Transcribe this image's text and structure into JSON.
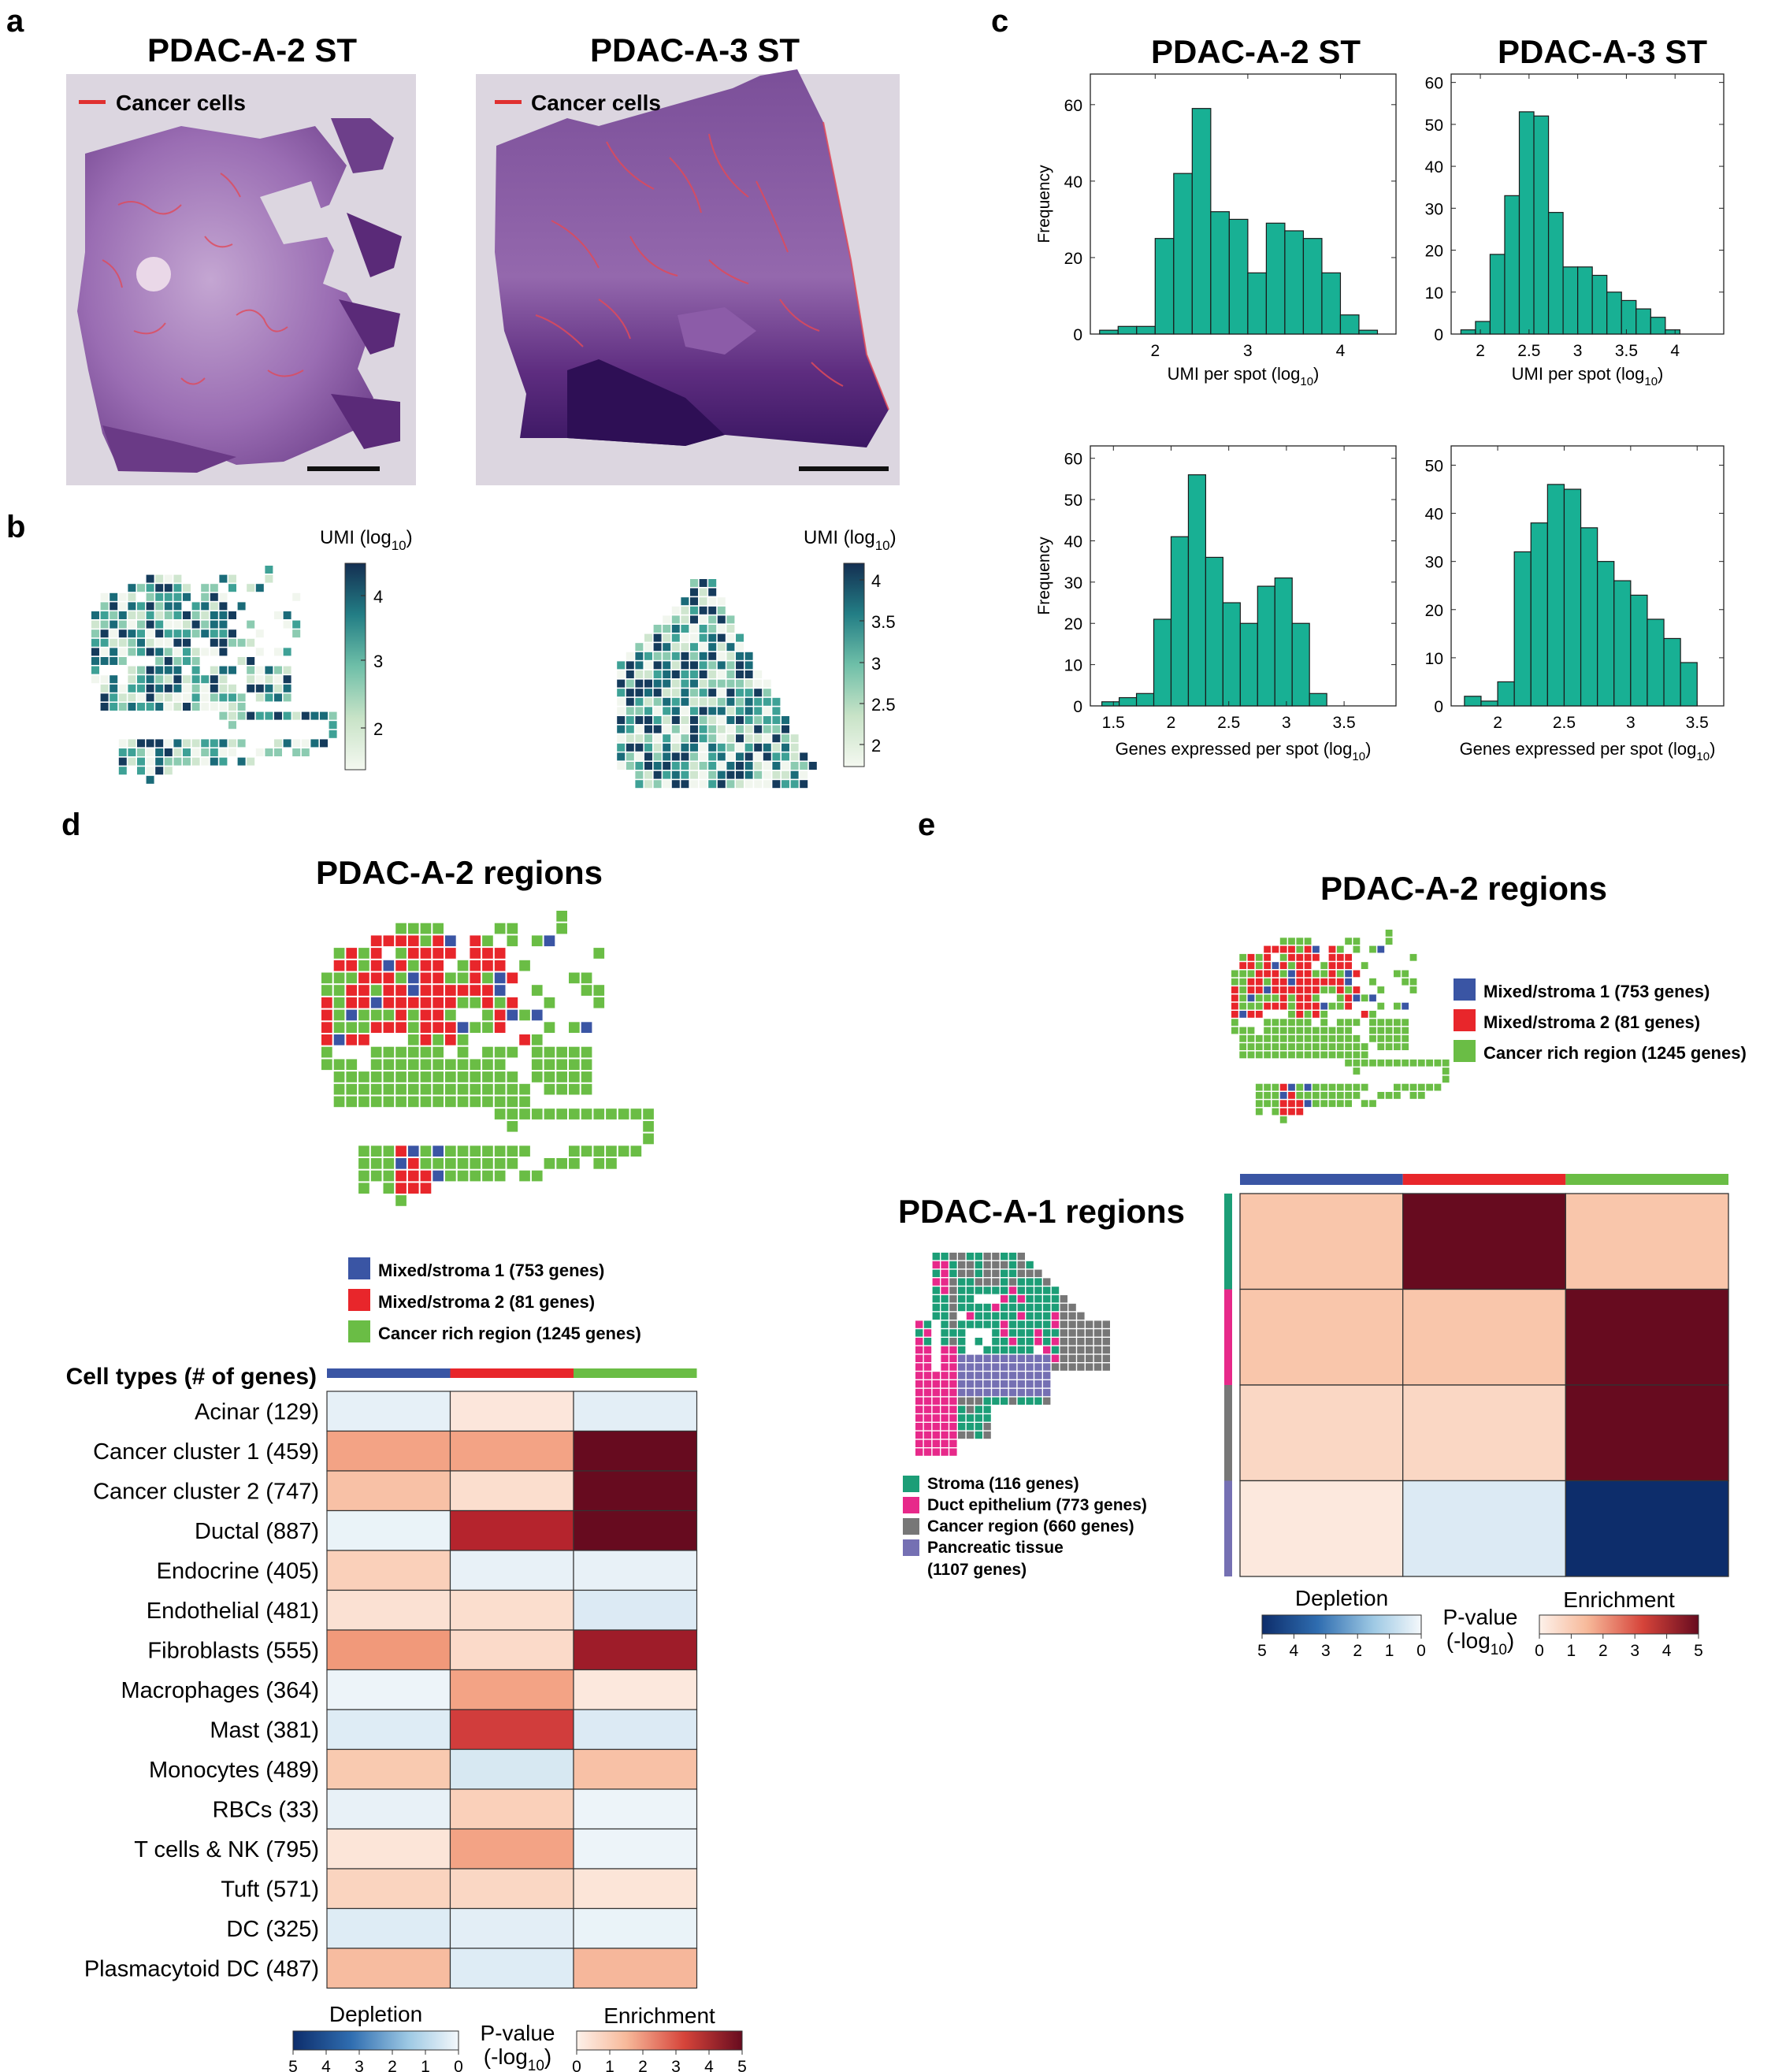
{
  "panel_letters": {
    "a": "a",
    "b": "b",
    "c": "c",
    "d": "d",
    "e": "e"
  },
  "panel_a": {
    "titles": [
      "PDAC-A-2 ST",
      "PDAC-A-3 ST"
    ],
    "legend_label": "Cancer cells",
    "legend_color": "#e03030",
    "tissue_colors": {
      "light": "#b58fc4",
      "dark": "#5a2a78",
      "bg": "#dcd6e0"
    }
  },
  "panel_b": {
    "colorbar_title": "UMI (log",
    "colorbar_sub": "10",
    "colorbar_close": ")",
    "left_ticks": [
      "4",
      "3",
      "2"
    ],
    "right_ticks": [
      "4",
      "3.5",
      "3",
      "2.5",
      "2"
    ],
    "colors": [
      "#f1f6ee",
      "#cfe6cf",
      "#8ccbb1",
      "#3ea196",
      "#1a6b79",
      "#153b5c"
    ]
  },
  "chart_data": [
    {
      "type": "bar",
      "title": "PDAC-A-2 ST",
      "xlabel": "UMI per spot (log10)",
      "ylabel": "Frequency",
      "x_ticks": [
        "2",
        "3",
        "4"
      ],
      "y_ticks": [
        "0",
        "20",
        "40",
        "60"
      ],
      "xlim": [
        1.3,
        4.6
      ],
      "ylim": [
        0,
        68
      ],
      "bin_edges": [
        1.4,
        1.6,
        1.8,
        2.0,
        2.2,
        2.4,
        2.6,
        2.8,
        3.0,
        3.2,
        3.4,
        3.6,
        3.8,
        4.0,
        4.2,
        4.4
      ],
      "values": [
        1,
        2,
        2,
        25,
        42,
        59,
        32,
        30,
        16,
        29,
        27,
        25,
        16,
        5,
        1
      ],
      "color": "#18b094"
    },
    {
      "type": "bar",
      "title": "PDAC-A-3 ST",
      "xlabel": "UMI per spot (log10)",
      "ylabel": "",
      "x_ticks": [
        "2",
        "2.5",
        "3",
        "3.5",
        "4"
      ],
      "y_ticks": [
        "0",
        "10",
        "20",
        "30",
        "40",
        "50",
        "60"
      ],
      "xlim": [
        1.7,
        4.5
      ],
      "ylim": [
        0,
        62
      ],
      "bin_edges": [
        1.8,
        1.95,
        2.1,
        2.25,
        2.4,
        2.55,
        2.7,
        2.85,
        3.0,
        3.15,
        3.3,
        3.45,
        3.6,
        3.75,
        3.9,
        4.05,
        4.2
      ],
      "values": [
        1,
        3,
        19,
        33,
        53,
        52,
        29,
        16,
        16,
        14,
        10,
        8,
        6,
        4,
        1,
        0
      ],
      "color": "#18b094"
    },
    {
      "type": "bar",
      "title": "",
      "xlabel": "Genes expressed per spot (log10)",
      "ylabel": "Frequency",
      "x_ticks": [
        "1.5",
        "2",
        "2.5",
        "3",
        "3.5"
      ],
      "y_ticks": [
        "0",
        "10",
        "20",
        "30",
        "40",
        "50",
        "60"
      ],
      "xlim": [
        1.3,
        3.95
      ],
      "ylim": [
        0,
        63
      ],
      "bin_edges": [
        1.4,
        1.55,
        1.7,
        1.85,
        2.0,
        2.15,
        2.3,
        2.45,
        2.6,
        2.75,
        2.9,
        3.05,
        3.2,
        3.35,
        3.5,
        3.65,
        3.8
      ],
      "values": [
        1,
        2,
        3,
        21,
        41,
        56,
        36,
        25,
        20,
        29,
        31,
        20,
        3,
        0,
        0,
        0
      ],
      "color": "#18b094"
    },
    {
      "type": "bar",
      "title": "",
      "xlabel": "Genes expressed per spot (log10)",
      "ylabel": "",
      "x_ticks": [
        "2",
        "2.5",
        "3",
        "3.5"
      ],
      "y_ticks": [
        "0",
        "10",
        "20",
        "30",
        "40",
        "50"
      ],
      "xlim": [
        1.65,
        3.7
      ],
      "ylim": [
        0,
        54
      ],
      "bin_edges": [
        1.75,
        1.875,
        2.0,
        2.125,
        2.25,
        2.375,
        2.5,
        2.625,
        2.75,
        2.875,
        3.0,
        3.125,
        3.25,
        3.375,
        3.5
      ],
      "values": [
        2,
        1,
        5,
        32,
        38,
        46,
        45,
        37,
        30,
        26,
        23,
        18,
        14,
        9,
        6
      ],
      "color": "#18b094"
    },
    {
      "type": "heatmap",
      "title": "",
      "ylabel": "Cell types (# of genes)",
      "rows": [
        "Acinar (129)",
        "Cancer cluster 1 (459)",
        "Cancer cluster 2 (747)",
        "Ductal (887)",
        "Endocrine (405)",
        "Endothelial (481)",
        "Fibroblasts (555)",
        "Macrophages (364)",
        "Mast (381)",
        "Monocytes (489)",
        "RBCs (33)",
        "T cells & NK (795)",
        "Tuft (571)",
        "DC (325)",
        "Plasmacytoid DC (487)"
      ],
      "columns": [
        "Mixed/stroma 1 (753 genes)",
        "Mixed/stroma 2 (81 genes)",
        "Cancer rich region (1245 genes)"
      ],
      "column_colors": [
        "#3a55a4",
        "#e8262b",
        "#6abd45"
      ],
      "values": [
        [
          -0.6,
          0.35,
          -0.7
        ],
        [
          2.0,
          2.0,
          5.0
        ],
        [
          1.4,
          0.6,
          5.0
        ],
        [
          -0.4,
          4.0,
          5.0
        ],
        [
          1.0,
          -0.5,
          -0.5
        ],
        [
          0.5,
          0.6,
          -1.0
        ],
        [
          2.2,
          0.7,
          4.3
        ],
        [
          -0.3,
          2.0,
          0.3
        ],
        [
          -0.9,
          3.5,
          -1.0
        ],
        [
          1.2,
          -1.2,
          1.4
        ],
        [
          -0.5,
          1.0,
          -0.3
        ],
        [
          0.4,
          2.0,
          -0.3
        ],
        [
          0.9,
          0.8,
          0.4
        ],
        [
          -0.9,
          -0.7,
          -0.4
        ],
        [
          1.5,
          -0.9,
          1.6
        ]
      ],
      "scale": {
        "depletion_label": "Depletion",
        "enrichment_label": "Enrichment",
        "pvalue_label": "P-value",
        "pvalue_sub": "(-log",
        "pvalue_sub2": "10",
        "pvalue_close": ")",
        "dep_ticks": [
          "5",
          "4",
          "3",
          "2",
          "1",
          "0"
        ],
        "enr_ticks": [
          "0",
          "1",
          "2",
          "3",
          "4",
          "5"
        ]
      }
    },
    {
      "type": "heatmap",
      "title": "",
      "rows": [
        "Stroma (116 genes)",
        "Duct epithelium (773 genes)",
        "Cancer region (660 genes)",
        "Pancreatic tissue (1107 genes)"
      ],
      "row_colors": [
        "#1c9e77",
        "#e7298a",
        "#777777",
        "#7570b3"
      ],
      "columns": [
        "Mixed/stroma 1 (753 genes)",
        "Mixed/stroma 2 (81 genes)",
        "Cancer rich region (1245 genes)"
      ],
      "column_colors": [
        "#3a55a4",
        "#e8262b",
        "#6abd45"
      ],
      "values": [
        [
          1.3,
          5.0,
          1.3
        ],
        [
          1.3,
          1.3,
          5.0
        ],
        [
          0.8,
          0.8,
          5.0
        ],
        [
          0.3,
          -1.0,
          -5.0
        ]
      ]
    }
  ],
  "panel_d": {
    "title": "PDAC-A-2 regions",
    "header": "Cell types (# of genes)",
    "legend": [
      {
        "label": "Mixed/stroma 1 (753 genes)",
        "color": "#3a55a4"
      },
      {
        "label": "Mixed/stroma 2 (81 genes)",
        "color": "#e8262b"
      },
      {
        "label": "Cancer rich region (1245 genes)",
        "color": "#6abd45"
      }
    ]
  },
  "panel_e": {
    "title_top": "PDAC-A-2 regions",
    "title_left": "PDAC-A-1 regions",
    "legend_top": [
      {
        "label": "Mixed/stroma 1 (753 genes)",
        "color": "#3a55a4"
      },
      {
        "label": "Mixed/stroma 2 (81 genes)",
        "color": "#e8262b"
      },
      {
        "label": "Cancer rich region (1245 genes)",
        "color": "#6abd45"
      }
    ],
    "legend_left": [
      {
        "label": "Stroma (116 genes)",
        "color": "#1c9e77"
      },
      {
        "label": "Duct epithelium (773 genes)",
        "color": "#e7298a"
      },
      {
        "label": "Cancer region (660 genes)",
        "color": "#777777"
      },
      {
        "label": "Pancreatic tissue",
        "label2": "(1107 genes)",
        "color": "#7570b3"
      }
    ]
  },
  "spot_grids": {
    "pdac_a2": [
      "...................#........",
      "......####....##...#........",
      "....#######.##.#.##.........",
      ".####.#####.###.......#.....",
      ".#########.####.#...........",
      "################....##......",
      "###############..#...##.....",
      "################..#...#.....",
      "###########..#####..........",
      "###############...#.##......",
      "####...#####....##..........",
      "#...######.#.###.#####......",
      "###.###########..#####......",
      ".###############.#####......",
      ".################.####......",
      ".################...........",
      "..............#############.",
      "...............#..........#.",
      "..........................#.",
      "...##############...######..",
      "...#############..###.##....",
      "...############.##..........",
      "...#.####...................",
      "......#....................."
    ]
  }
}
